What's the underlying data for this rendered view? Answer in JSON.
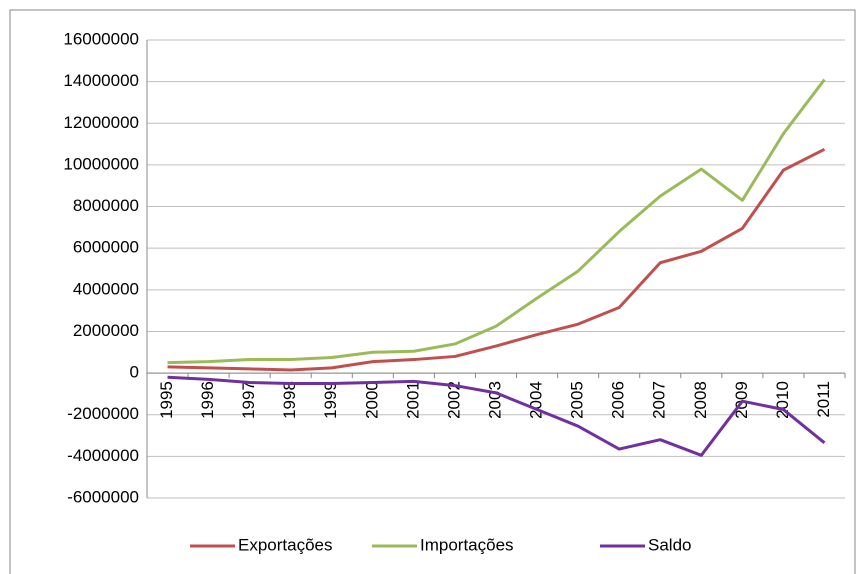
{
  "chart_data": {
    "type": "line",
    "categories": [
      "1995",
      "1996",
      "1997",
      "1998",
      "1999",
      "2000",
      "2001",
      "2002",
      "2003",
      "2004",
      "2005",
      "2006",
      "2007",
      "2008",
      "2009",
      "2010",
      "2011"
    ],
    "series": [
      {
        "name": "Exportações",
        "color": "#c0504d",
        "values": [
          300000,
          250000,
          200000,
          150000,
          250000,
          550000,
          650000,
          800000,
          1300000,
          1850000,
          2350000,
          3150000,
          5300000,
          5850000,
          6950000,
          9750000,
          10750000
        ]
      },
      {
        "name": "Importações",
        "color": "#9bbb59",
        "values": [
          500000,
          550000,
          650000,
          650000,
          750000,
          1000000,
          1050000,
          1400000,
          2250000,
          3600000,
          4900000,
          6800000,
          8500000,
          9800000,
          8300000,
          11500000,
          14100000
        ]
      },
      {
        "name": "Saldo",
        "color": "#7030a0",
        "values": [
          -200000,
          -300000,
          -450000,
          -500000,
          -500000,
          -450000,
          -400000,
          -600000,
          -950000,
          -1750000,
          -2550000,
          -3650000,
          -3200000,
          -3950000,
          -1350000,
          -1750000,
          -3350000
        ]
      }
    ],
    "ylim": [
      -6000000,
      16000000
    ],
    "yticks": [
      -6000000,
      -4000000,
      -2000000,
      0,
      2000000,
      4000000,
      6000000,
      8000000,
      10000000,
      12000000,
      14000000,
      16000000
    ],
    "grid": true,
    "legend": "bottom"
  }
}
